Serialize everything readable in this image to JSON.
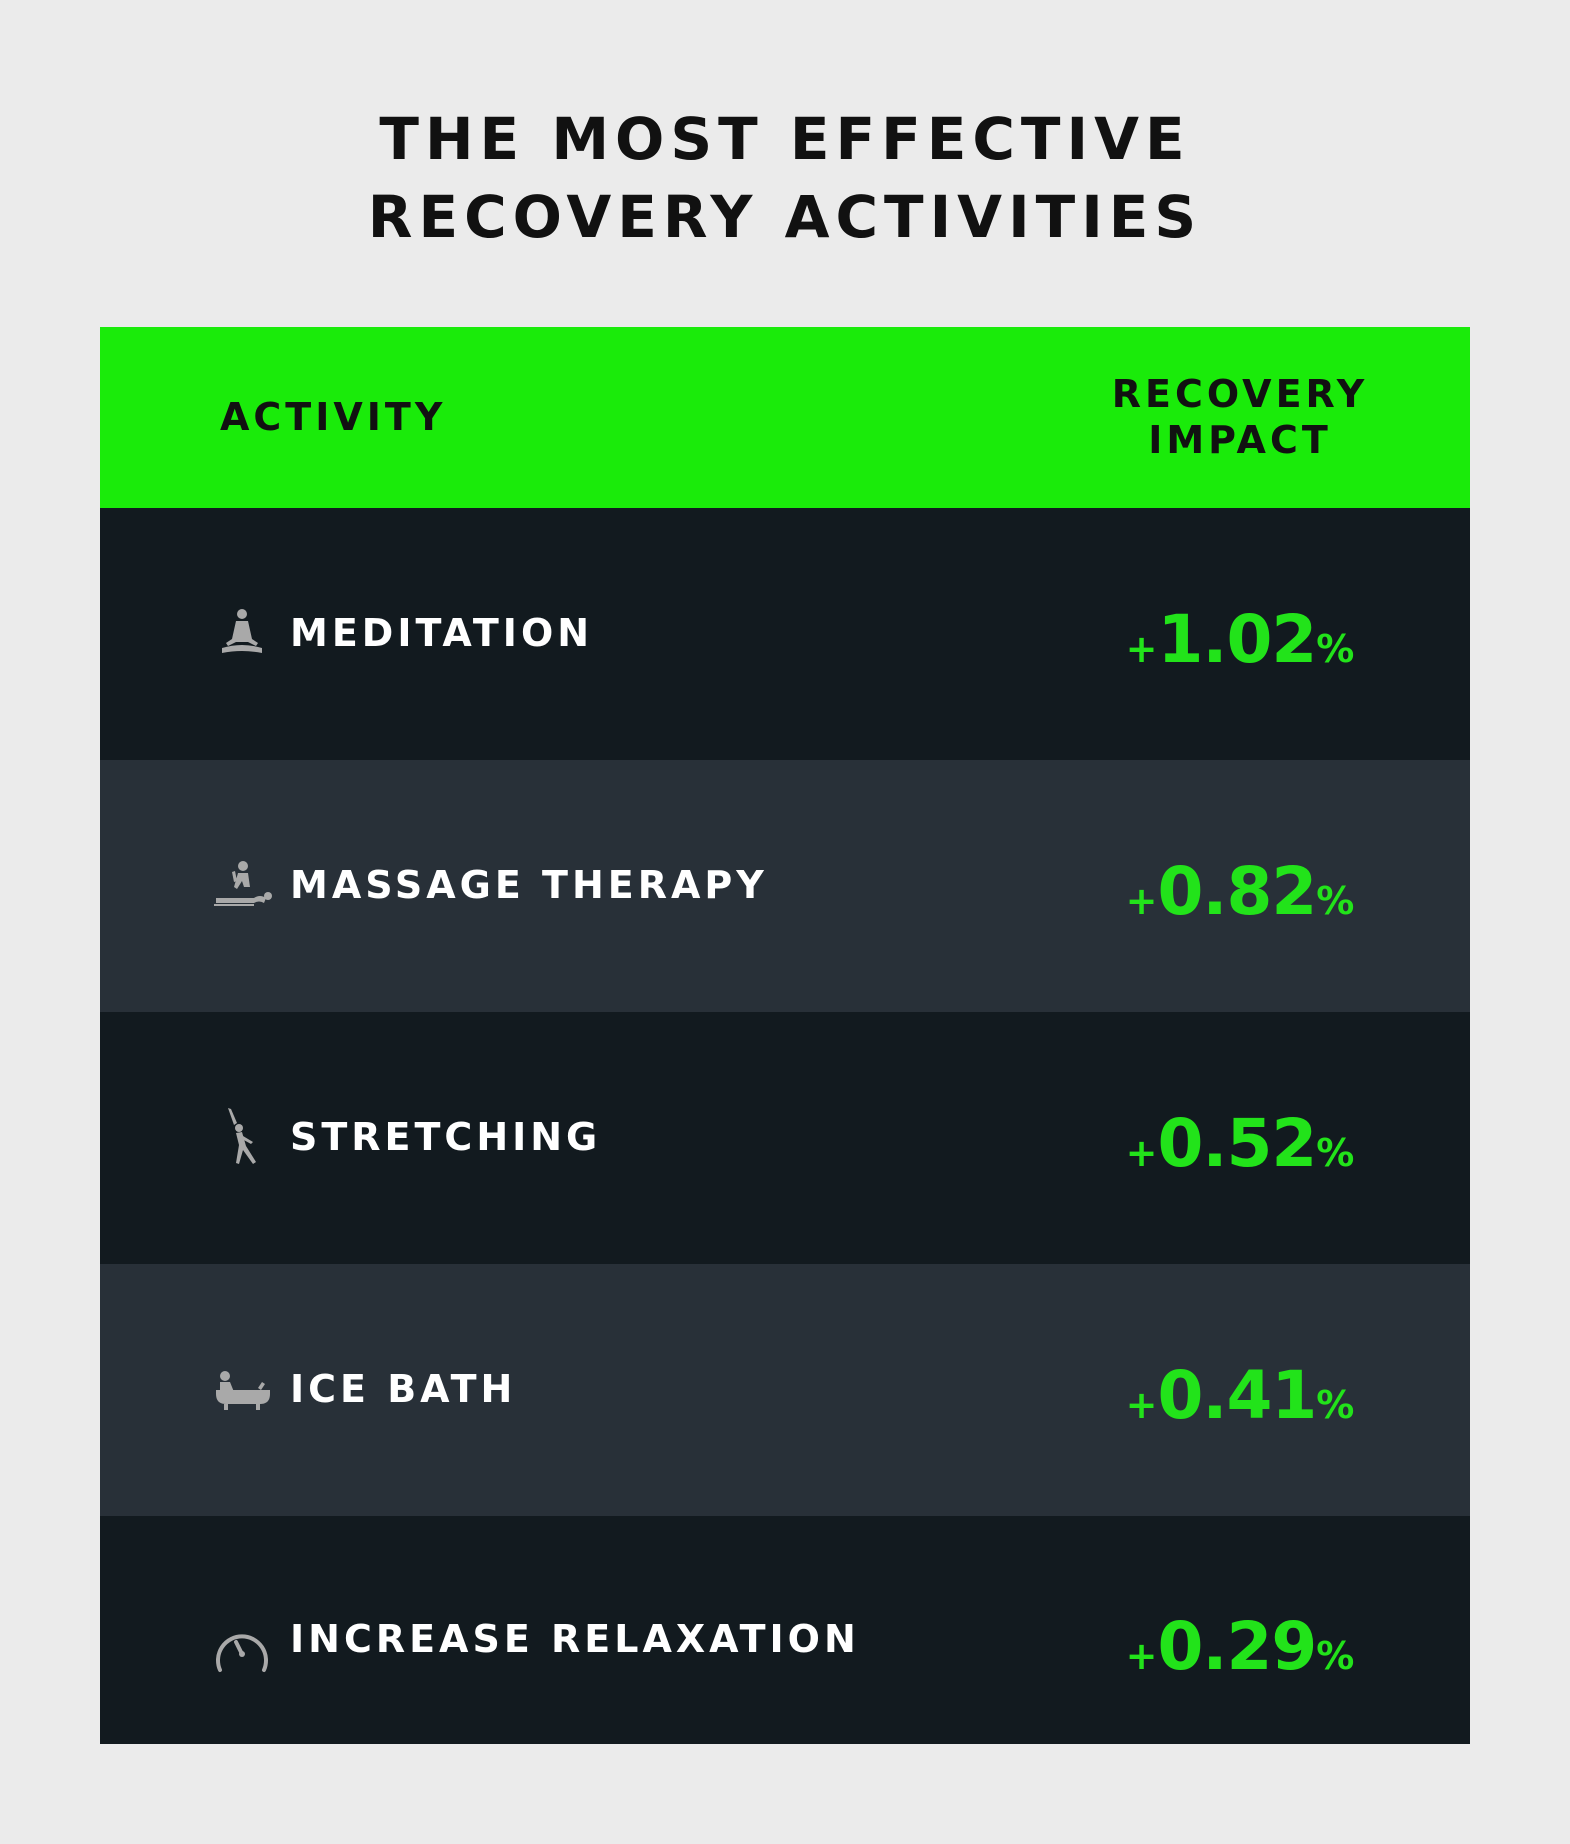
{
  "title": {
    "line1": "THE MOST EFFECTIVE",
    "line2": "RECOVERY ACTIVITIES"
  },
  "colors": {
    "background": "#ebebeb",
    "header": "#1aeb0a",
    "row_dark": "#121a1f",
    "row_light": "#283038",
    "value": "#22e31a",
    "icon": "#a9a9a9"
  },
  "chart_data": {
    "type": "table",
    "columns": [
      "ACTIVITY",
      "RECOVERY IMPACT"
    ],
    "header": {
      "activity": "ACTIVITY",
      "impact_line1": "RECOVERY",
      "impact_line2": "IMPACT"
    },
    "rows": [
      {
        "icon": "meditation-icon",
        "activity": "MEDITATION",
        "sign": "+",
        "value": "1.02",
        "unit": "%"
      },
      {
        "icon": "massage-icon",
        "activity": "MASSAGE THERAPY",
        "sign": "+",
        "value": "0.82",
        "unit": "%"
      },
      {
        "icon": "stretching-icon",
        "activity": "STRETCHING",
        "sign": "+",
        "value": "0.52",
        "unit": "%"
      },
      {
        "icon": "ice-bath-icon",
        "activity": "ICE BATH",
        "sign": "+",
        "value": "0.41",
        "unit": "%"
      },
      {
        "icon": "gauge-icon",
        "activity": "INCREASE RELAXATION",
        "sign": "+",
        "value": "0.29",
        "unit": "%"
      }
    ]
  }
}
